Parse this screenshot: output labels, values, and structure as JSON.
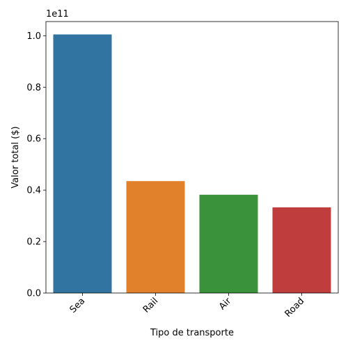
{
  "chart_data": {
    "type": "bar",
    "categories": [
      "Sea",
      "Rail",
      "Air",
      "Road"
    ],
    "values": [
      100500000000,
      43500000000,
      38200000000,
      33300000000
    ],
    "colors": [
      "#3274a1",
      "#e1812c",
      "#3a923a",
      "#c03d3e"
    ],
    "xlabel": "Tipo de transporte",
    "ylabel": "Valor total ($)",
    "y_offset_label": "1e11",
    "y_scale": 100000000000,
    "ylim": [
      0,
      1.055
    ],
    "yticks": [
      0.0,
      0.2,
      0.4,
      0.6,
      0.8,
      1.0
    ],
    "ytick_labels": [
      "0.0",
      "0.2",
      "0.4",
      "0.6",
      "0.8",
      "1.0"
    ],
    "grid": false,
    "legend": "none"
  }
}
